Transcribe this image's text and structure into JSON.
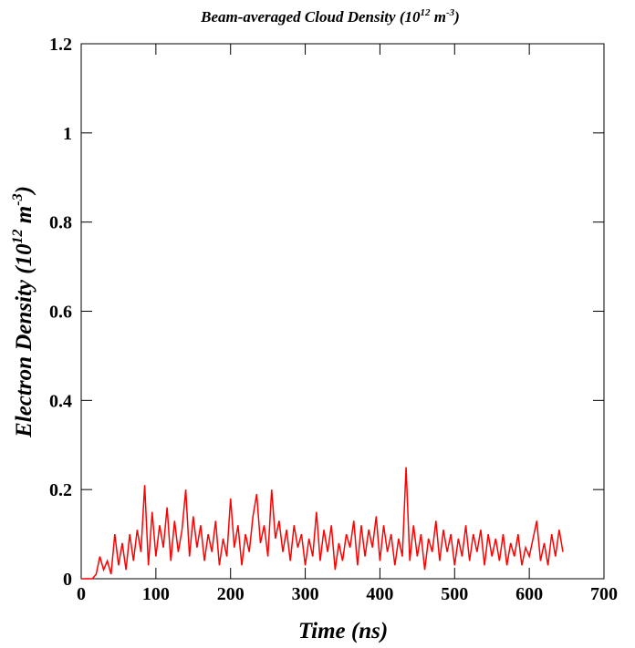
{
  "chart_data": {
    "type": "line",
    "title": [
      "Beam-averaged Cloud Density (10",
      "12",
      " m",
      "-3",
      ")"
    ],
    "x_label": "Time (ns)",
    "y_label": [
      "Electron Density (10",
      "12",
      " m",
      "-3",
      ")"
    ],
    "xlim": [
      0,
      700
    ],
    "ylim": [
      0,
      1.2
    ],
    "xticks": [
      0,
      100,
      200,
      300,
      400,
      500,
      600,
      700
    ],
    "yticks": [
      0,
      0.2,
      0.4,
      0.6,
      0.8,
      1,
      1.2
    ],
    "x": [
      0,
      5,
      10,
      15,
      20,
      25,
      30,
      35,
      40,
      45,
      50,
      55,
      60,
      65,
      70,
      75,
      80,
      85,
      90,
      95,
      100,
      105,
      110,
      115,
      120,
      125,
      130,
      135,
      140,
      145,
      150,
      155,
      160,
      165,
      170,
      175,
      180,
      185,
      190,
      195,
      200,
      205,
      210,
      215,
      220,
      225,
      230,
      235,
      240,
      245,
      250,
      255,
      260,
      265,
      270,
      275,
      280,
      285,
      290,
      295,
      300,
      305,
      310,
      315,
      320,
      325,
      330,
      335,
      340,
      345,
      350,
      355,
      360,
      365,
      370,
      375,
      380,
      385,
      390,
      395,
      400,
      405,
      410,
      415,
      420,
      425,
      430,
      435,
      440,
      445,
      450,
      455,
      460,
      465,
      470,
      475,
      480,
      485,
      490,
      495,
      500,
      505,
      510,
      515,
      520,
      525,
      530,
      535,
      540,
      545,
      550,
      555,
      560,
      565,
      570,
      575,
      580,
      585,
      590,
      595,
      600,
      605,
      610,
      615,
      620,
      625,
      630,
      635,
      640,
      645
    ],
    "series": [
      {
        "color": "#ff0000",
        "values": [
          0,
          0,
          0,
          0,
          0.01,
          0.05,
          0.02,
          0.04,
          0.01,
          0.1,
          0.03,
          0.08,
          0.02,
          0.1,
          0.04,
          0.11,
          0.06,
          0.21,
          0.03,
          0.15,
          0.05,
          0.12,
          0.07,
          0.16,
          0.04,
          0.13,
          0.06,
          0.11,
          0.2,
          0.05,
          0.14,
          0.07,
          0.12,
          0.04,
          0.1,
          0.06,
          0.13,
          0.03,
          0.09,
          0.05,
          0.18,
          0.07,
          0.12,
          0.03,
          0.1,
          0.06,
          0.14,
          0.19,
          0.08,
          0.12,
          0.05,
          0.2,
          0.09,
          0.13,
          0.06,
          0.11,
          0.04,
          0.12,
          0.07,
          0.1,
          0.03,
          0.09,
          0.05,
          0.15,
          0.04,
          0.11,
          0.06,
          0.12,
          0.02,
          0.08,
          0.04,
          0.1,
          0.07,
          0.13,
          0.03,
          0.12,
          0.05,
          0.11,
          0.07,
          0.14,
          0.04,
          0.12,
          0.06,
          0.1,
          0.03,
          0.09,
          0.05,
          0.25,
          0.04,
          0.12,
          0.05,
          0.1,
          0.02,
          0.09,
          0.06,
          0.13,
          0.04,
          0.11,
          0.06,
          0.1,
          0.03,
          0.09,
          0.05,
          0.12,
          0.04,
          0.1,
          0.06,
          0.11,
          0.03,
          0.1,
          0.05,
          0.09,
          0.04,
          0.1,
          0.03,
          0.08,
          0.05,
          0.1,
          0.03,
          0.07,
          0.05,
          0.09,
          0.13,
          0.04,
          0.08,
          0.03,
          0.1,
          0.05,
          0.11,
          0.06
        ]
      }
    ]
  }
}
